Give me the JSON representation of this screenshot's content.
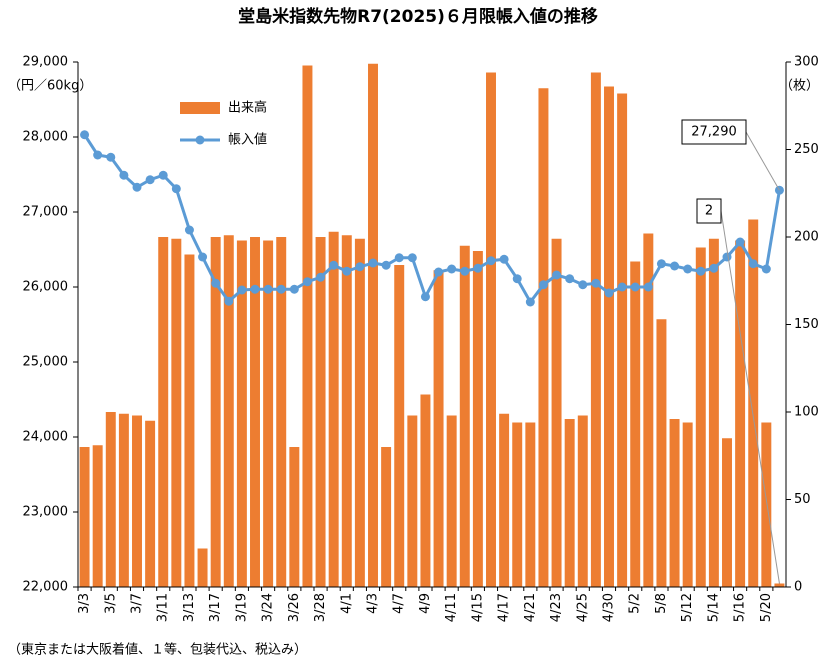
{
  "chart_data": {
    "type": "bar_line",
    "title": "堂島米指数先物R7(2025)６月限帳入値の推移",
    "y_label": "（円／60kg）",
    "y2_label": "（枚）",
    "footnote": "（東京または大阪着値、１等、包装代込、税込み）",
    "categories": [
      "3/3",
      null,
      "3/5",
      null,
      "3/7",
      null,
      "3/11",
      null,
      "3/13",
      null,
      "3/17",
      null,
      "3/19",
      null,
      "3/24",
      null,
      "3/26",
      null,
      "3/28",
      null,
      "4/1",
      null,
      "4/3",
      null,
      "4/7",
      null,
      "4/9",
      null,
      "4/11",
      null,
      "4/15",
      null,
      "4/17",
      null,
      "4/21",
      null,
      "4/23",
      null,
      "4/25",
      null,
      "4/30",
      null,
      "5/2",
      null,
      "5/8",
      null,
      "5/12",
      null,
      "5/14",
      null,
      "5/16",
      null,
      "5/20",
      null
    ],
    "series": [
      {
        "name": "出来高",
        "type": "bar",
        "axis": "y2",
        "color": "#ed7d31",
        "values": [
          80,
          81,
          100,
          99,
          98,
          95,
          200,
          199,
          190,
          22,
          200,
          201,
          198,
          200,
          198,
          200,
          80,
          298,
          200,
          203,
          201,
          199,
          299,
          80,
          184,
          98,
          110,
          181,
          98,
          195,
          192,
          294,
          99,
          94,
          94,
          285,
          199,
          96,
          98,
          294,
          286,
          282,
          186,
          202,
          153,
          96,
          94,
          194,
          199,
          85,
          198,
          210,
          94,
          2
        ]
      },
      {
        "name": "帳入値",
        "type": "line",
        "color": "#5b9bd5",
        "values": [
          28030,
          27760,
          27730,
          27490,
          27330,
          27430,
          27490,
          27310,
          26760,
          26400,
          26050,
          25810,
          25960,
          25970,
          25970,
          25970,
          25970,
          26070,
          26130,
          26290,
          26210,
          26270,
          26320,
          26290,
          26390,
          26390,
          25870,
          26200,
          26240,
          26210,
          26250,
          26350,
          26370,
          26110,
          25800,
          26030,
          26160,
          26110,
          26030,
          26050,
          25920,
          26000,
          26000,
          26000,
          26310,
          26280,
          26240,
          26210,
          26250,
          26400,
          26600,
          26310,
          26240,
          27290
        ],
        "value_labels": [
          null,
          null,
          null,
          null,
          null,
          null,
          null,
          null,
          null,
          null,
          null,
          null,
          null,
          null,
          null,
          null,
          null,
          null,
          null,
          null,
          null,
          null,
          null,
          null,
          null,
          null,
          null,
          null,
          null,
          null,
          null,
          null,
          null,
          null,
          null,
          null,
          null,
          null,
          null,
          null,
          null,
          null,
          null,
          null,
          null,
          null,
          null,
          null,
          null,
          null,
          null,
          null,
          null,
          "27,290"
        ]
      }
    ],
    "ylim": [
      22000,
      29000
    ],
    "yticks": [
      {
        "value": 22000,
        "label": "22,000"
      },
      {
        "value": 23000,
        "label": "23,000"
      },
      {
        "value": 24000,
        "label": "24,000"
      },
      {
        "value": 25000,
        "label": "25,000"
      },
      {
        "value": 26000,
        "label": "26,000"
      },
      {
        "value": 27000,
        "label": "27,000"
      },
      {
        "value": 28000,
        "label": "28,000"
      },
      {
        "value": 29000,
        "label": "29,000"
      }
    ],
    "y2lim": [
      0,
      300
    ],
    "y2ticks": [
      0,
      50,
      100,
      150,
      200,
      250,
      300
    ],
    "grid": false,
    "legend": "upper-left"
  }
}
